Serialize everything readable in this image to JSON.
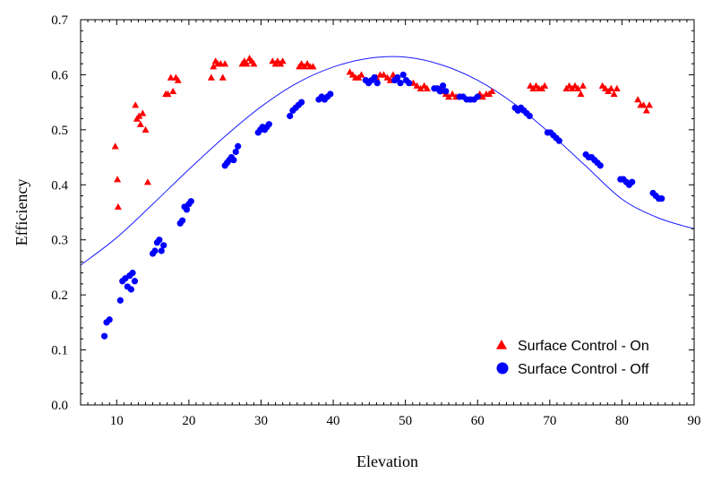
{
  "chart_data": {
    "type": "scatter",
    "xlabel": "Elevation",
    "ylabel": "Efficiency",
    "xlim": [
      5,
      90
    ],
    "ylim": [
      0,
      0.7
    ],
    "xticks": [
      10,
      20,
      30,
      40,
      50,
      60,
      70,
      80,
      90
    ],
    "yticks": [
      0.0,
      0.1,
      0.2,
      0.3,
      0.4,
      0.5,
      0.6,
      0.7
    ],
    "ytick_labels": [
      "0.0",
      "0.1",
      "0.2",
      "0.3",
      "0.4",
      "0.5",
      "0.6",
      "0.7"
    ],
    "grid": false,
    "legend_position": "bottom-right",
    "series": [
      {
        "name": "Surface Control - On",
        "marker": "triangle",
        "color": "#ff0000",
        "points": [
          [
            9.8,
            0.47
          ],
          [
            10.1,
            0.41
          ],
          [
            10.2,
            0.36
          ],
          [
            12.6,
            0.545
          ],
          [
            12.8,
            0.52
          ],
          [
            13.1,
            0.525
          ],
          [
            13.3,
            0.51
          ],
          [
            13.6,
            0.53
          ],
          [
            14.0,
            0.5
          ],
          [
            14.3,
            0.405
          ],
          [
            16.8,
            0.565
          ],
          [
            17.1,
            0.565
          ],
          [
            17.5,
            0.595
          ],
          [
            17.8,
            0.57
          ],
          [
            18.2,
            0.595
          ],
          [
            18.5,
            0.59
          ],
          [
            23.1,
            0.595
          ],
          [
            23.4,
            0.615
          ],
          [
            23.7,
            0.625
          ],
          [
            24.0,
            0.62
          ],
          [
            24.4,
            0.62
          ],
          [
            24.7,
            0.595
          ],
          [
            25.0,
            0.62
          ],
          [
            27.4,
            0.62
          ],
          [
            27.7,
            0.625
          ],
          [
            28.0,
            0.62
          ],
          [
            28.4,
            0.63
          ],
          [
            28.7,
            0.625
          ],
          [
            29.0,
            0.62
          ],
          [
            31.6,
            0.625
          ],
          [
            32.0,
            0.62
          ],
          [
            32.3,
            0.625
          ],
          [
            32.7,
            0.62
          ],
          [
            33.0,
            0.625
          ],
          [
            35.3,
            0.615
          ],
          [
            35.6,
            0.62
          ],
          [
            36.0,
            0.615
          ],
          [
            36.4,
            0.62
          ],
          [
            36.8,
            0.615
          ],
          [
            37.2,
            0.615
          ],
          [
            42.3,
            0.605
          ],
          [
            42.7,
            0.6
          ],
          [
            43.1,
            0.595
          ],
          [
            43.5,
            0.595
          ],
          [
            43.9,
            0.6
          ],
          [
            46.0,
            0.595
          ],
          [
            46.5,
            0.6
          ],
          [
            47.0,
            0.6
          ],
          [
            47.5,
            0.595
          ],
          [
            47.9,
            0.59
          ],
          [
            48.3,
            0.6
          ],
          [
            48.8,
            0.595
          ],
          [
            51.1,
            0.585
          ],
          [
            51.6,
            0.58
          ],
          [
            52.1,
            0.575
          ],
          [
            52.6,
            0.58
          ],
          [
            53.0,
            0.575
          ],
          [
            54.8,
            0.575
          ],
          [
            55.2,
            0.57
          ],
          [
            55.6,
            0.565
          ],
          [
            56.0,
            0.56
          ],
          [
            56.5,
            0.565
          ],
          [
            57.0,
            0.56
          ],
          [
            60.3,
            0.565
          ],
          [
            60.7,
            0.56
          ],
          [
            61.2,
            0.565
          ],
          [
            61.6,
            0.565
          ],
          [
            62.0,
            0.57
          ],
          [
            67.3,
            0.58
          ],
          [
            67.7,
            0.575
          ],
          [
            68.1,
            0.58
          ],
          [
            68.5,
            0.575
          ],
          [
            68.9,
            0.575
          ],
          [
            69.3,
            0.58
          ],
          [
            72.3,
            0.575
          ],
          [
            72.7,
            0.58
          ],
          [
            73.1,
            0.575
          ],
          [
            73.5,
            0.58
          ],
          [
            73.9,
            0.575
          ],
          [
            74.3,
            0.565
          ],
          [
            74.6,
            0.58
          ],
          [
            77.3,
            0.58
          ],
          [
            77.7,
            0.575
          ],
          [
            78.1,
            0.57
          ],
          [
            78.5,
            0.575
          ],
          [
            78.9,
            0.565
          ],
          [
            79.3,
            0.575
          ],
          [
            82.2,
            0.555
          ],
          [
            82.6,
            0.545
          ],
          [
            83.0,
            0.545
          ],
          [
            83.4,
            0.535
          ],
          [
            83.8,
            0.545
          ]
        ]
      },
      {
        "name": "Surface Control - Off",
        "marker": "circle",
        "color": "#0000ff",
        "points": [
          [
            8.3,
            0.125
          ],
          [
            8.6,
            0.15
          ],
          [
            9.0,
            0.155
          ],
          [
            10.5,
            0.19
          ],
          [
            10.8,
            0.225
          ],
          [
            11.2,
            0.23
          ],
          [
            11.5,
            0.215
          ],
          [
            11.8,
            0.235
          ],
          [
            12.0,
            0.21
          ],
          [
            12.2,
            0.24
          ],
          [
            12.5,
            0.225
          ],
          [
            15.0,
            0.275
          ],
          [
            15.3,
            0.28
          ],
          [
            15.6,
            0.295
          ],
          [
            15.9,
            0.3
          ],
          [
            16.2,
            0.28
          ],
          [
            16.5,
            0.29
          ],
          [
            18.8,
            0.33
          ],
          [
            19.1,
            0.335
          ],
          [
            19.4,
            0.36
          ],
          [
            19.7,
            0.355
          ],
          [
            20.0,
            0.365
          ],
          [
            20.3,
            0.37
          ],
          [
            25.0,
            0.435
          ],
          [
            25.3,
            0.44
          ],
          [
            25.6,
            0.445
          ],
          [
            25.9,
            0.45
          ],
          [
            26.2,
            0.445
          ],
          [
            26.5,
            0.46
          ],
          [
            26.8,
            0.47
          ],
          [
            29.6,
            0.495
          ],
          [
            29.9,
            0.5
          ],
          [
            30.2,
            0.505
          ],
          [
            30.5,
            0.5
          ],
          [
            30.8,
            0.505
          ],
          [
            31.1,
            0.51
          ],
          [
            34.0,
            0.525
          ],
          [
            34.4,
            0.535
          ],
          [
            34.8,
            0.54
          ],
          [
            35.2,
            0.545
          ],
          [
            35.6,
            0.55
          ],
          [
            38.0,
            0.555
          ],
          [
            38.4,
            0.56
          ],
          [
            38.8,
            0.555
          ],
          [
            39.2,
            0.56
          ],
          [
            39.6,
            0.565
          ],
          [
            44.5,
            0.59
          ],
          [
            44.9,
            0.585
          ],
          [
            45.3,
            0.59
          ],
          [
            45.7,
            0.595
          ],
          [
            46.1,
            0.585
          ],
          [
            48.5,
            0.59
          ],
          [
            48.9,
            0.595
          ],
          [
            49.3,
            0.585
          ],
          [
            49.7,
            0.6
          ],
          [
            50.1,
            0.59
          ],
          [
            50.5,
            0.585
          ],
          [
            54.0,
            0.575
          ],
          [
            54.4,
            0.575
          ],
          [
            54.8,
            0.57
          ],
          [
            55.2,
            0.58
          ],
          [
            55.6,
            0.57
          ],
          [
            57.5,
            0.56
          ],
          [
            58.0,
            0.56
          ],
          [
            58.5,
            0.555
          ],
          [
            59.0,
            0.555
          ],
          [
            59.5,
            0.555
          ],
          [
            60.0,
            0.56
          ],
          [
            65.2,
            0.54
          ],
          [
            65.6,
            0.535
          ],
          [
            66.0,
            0.54
          ],
          [
            66.4,
            0.535
          ],
          [
            66.8,
            0.53
          ],
          [
            67.2,
            0.525
          ],
          [
            69.7,
            0.495
          ],
          [
            70.1,
            0.495
          ],
          [
            70.5,
            0.49
          ],
          [
            70.9,
            0.485
          ],
          [
            71.3,
            0.48
          ],
          [
            75.0,
            0.455
          ],
          [
            75.4,
            0.45
          ],
          [
            75.8,
            0.45
          ],
          [
            76.2,
            0.445
          ],
          [
            76.6,
            0.44
          ],
          [
            77.0,
            0.435
          ],
          [
            79.8,
            0.41
          ],
          [
            80.2,
            0.41
          ],
          [
            80.6,
            0.405
          ],
          [
            81.0,
            0.4
          ],
          [
            81.4,
            0.405
          ],
          [
            84.3,
            0.385
          ],
          [
            84.7,
            0.38
          ],
          [
            85.1,
            0.375
          ],
          [
            85.5,
            0.375
          ]
        ]
      }
    ],
    "curve": {
      "color": "#1a1aff",
      "points": [
        [
          5,
          0.254
        ],
        [
          10,
          0.304
        ],
        [
          15,
          0.365
        ],
        [
          20,
          0.428
        ],
        [
          25,
          0.488
        ],
        [
          30,
          0.542
        ],
        [
          35,
          0.585
        ],
        [
          40,
          0.614
        ],
        [
          45,
          0.63
        ],
        [
          50,
          0.632
        ],
        [
          55,
          0.618
        ],
        [
          60,
          0.59
        ],
        [
          65,
          0.548
        ],
        [
          70,
          0.494
        ],
        [
          75,
          0.434
        ],
        [
          80,
          0.374
        ],
        [
          85,
          0.34
        ],
        [
          90,
          0.32
        ]
      ]
    }
  }
}
